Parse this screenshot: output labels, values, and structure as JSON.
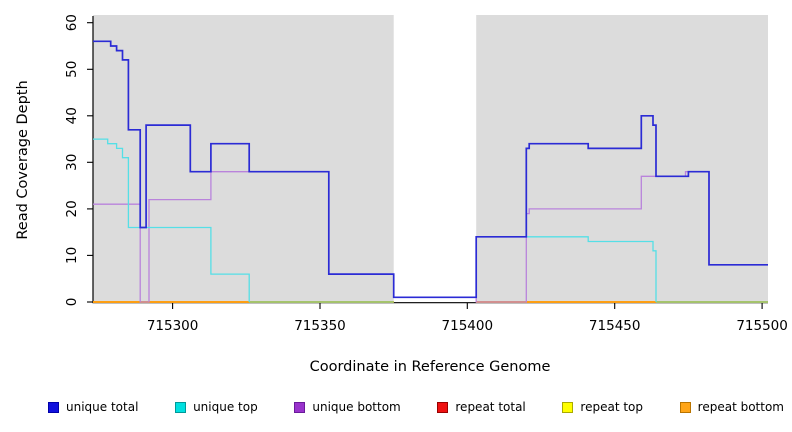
{
  "chart_data": {
    "type": "line",
    "subtype": "step",
    "title": "",
    "xlabel": "Coordinate in Reference Genome",
    "ylabel": "Read Coverage Depth",
    "xlim": [
      715273,
      715502
    ],
    "ylim": [
      0,
      60
    ],
    "x_ticks": [
      715300,
      715350,
      715400,
      715450,
      715500
    ],
    "y_ticks": [
      0,
      10,
      20,
      30,
      40,
      50,
      60
    ],
    "grid": false,
    "legend_position": "bottom",
    "plot_bg": "#dcdcdc",
    "highlight_band": {
      "x0": 715375,
      "x1": 715403,
      "color": "#ffffff"
    },
    "series": [
      {
        "name": "unique total",
        "slug": "unique-total",
        "color": "#2b2bd5",
        "legend_color": "#1111dd",
        "edge": "#0000aa",
        "segments": [
          {
            "points": [
              [
                715273,
                56
              ],
              [
                715279,
                55
              ],
              [
                715281,
                54
              ],
              [
                715283,
                52
              ],
              [
                715285,
                37
              ],
              [
                715289,
                16
              ],
              [
                715291,
                38
              ],
              [
                715306,
                28
              ],
              [
                715313,
                34
              ],
              [
                715326,
                28
              ],
              [
                715353,
                6
              ],
              [
                715375,
                1
              ],
              [
                715403,
                14
              ],
              [
                715420,
                33
              ],
              [
                715421,
                34
              ],
              [
                715441,
                33
              ],
              [
                715459,
                40
              ],
              [
                715463,
                38
              ],
              [
                715464,
                27
              ],
              [
                715475,
                28
              ],
              [
                715482,
                8
              ]
            ],
            "end": 715502
          }
        ]
      },
      {
        "name": "unique top",
        "slug": "unique-top",
        "color": "#55dfe6",
        "legend_color": "#00e0e0",
        "edge": "#009999",
        "segments": [
          {
            "points": [
              [
                715273,
                35
              ],
              [
                715278,
                34
              ],
              [
                715281,
                33
              ],
              [
                715283,
                31
              ],
              [
                715285,
                16
              ],
              [
                715313,
                6
              ],
              [
                715326,
                0
              ]
            ],
            "end": 715326
          },
          {
            "points": [
              [
                715403,
                14
              ],
              [
                715441,
                13
              ],
              [
                715463,
                11
              ],
              [
                715464,
                0
              ]
            ],
            "end": 715464
          }
        ]
      },
      {
        "name": "unique bottom",
        "slug": "unique-bottom",
        "color": "#b983db",
        "legend_color": "#9933cc",
        "edge": "#6a1b9a",
        "segments": [
          {
            "points": [
              [
                715273,
                21
              ],
              [
                715289,
                0
              ],
              [
                715292,
                22
              ],
              [
                715313,
                28
              ],
              [
                715353,
                6
              ],
              [
                715375,
                1
              ],
              [
                715403,
                0
              ],
              [
                715420,
                19
              ],
              [
                715421,
                20
              ],
              [
                715459,
                27
              ],
              [
                715474,
                28
              ],
              [
                715482,
                8
              ]
            ],
            "end": 715502
          }
        ]
      },
      {
        "name": "repeat total",
        "slug": "repeat-total",
        "color": "#dd1111",
        "legend_color": "#ee1111",
        "edge": "#990000",
        "segments": [
          {
            "points": [
              [
                715273,
                0
              ]
            ],
            "end": 715375
          },
          {
            "points": [
              [
                715403,
                0
              ]
            ],
            "end": 715502
          }
        ]
      },
      {
        "name": "repeat top",
        "slug": "repeat-top",
        "color": "#ffff00",
        "legend_color": "#ffff00",
        "edge": "#aaaa00",
        "segments": [
          {
            "points": [
              [
                715273,
                0
              ]
            ],
            "end": 715375
          },
          {
            "points": [
              [
                715403,
                0
              ]
            ],
            "end": 715502
          }
        ]
      },
      {
        "name": "repeat bottom",
        "slug": "repeat-bottom",
        "color": "#ff9814",
        "legend_color": "#ffa518",
        "edge": "#b97400",
        "segments": [
          {
            "points": [
              [
                715273,
                0
              ]
            ],
            "end": 715375
          },
          {
            "points": [
              [
                715403,
                0
              ]
            ],
            "end": 715502
          }
        ]
      }
    ],
    "zero_overlap_segments": [
      {
        "x0": 715326,
        "x1": 715375,
        "color": "#88cd8b"
      },
      {
        "x0": 715464,
        "x1": 715502,
        "color": "#88cd8b"
      }
    ]
  }
}
